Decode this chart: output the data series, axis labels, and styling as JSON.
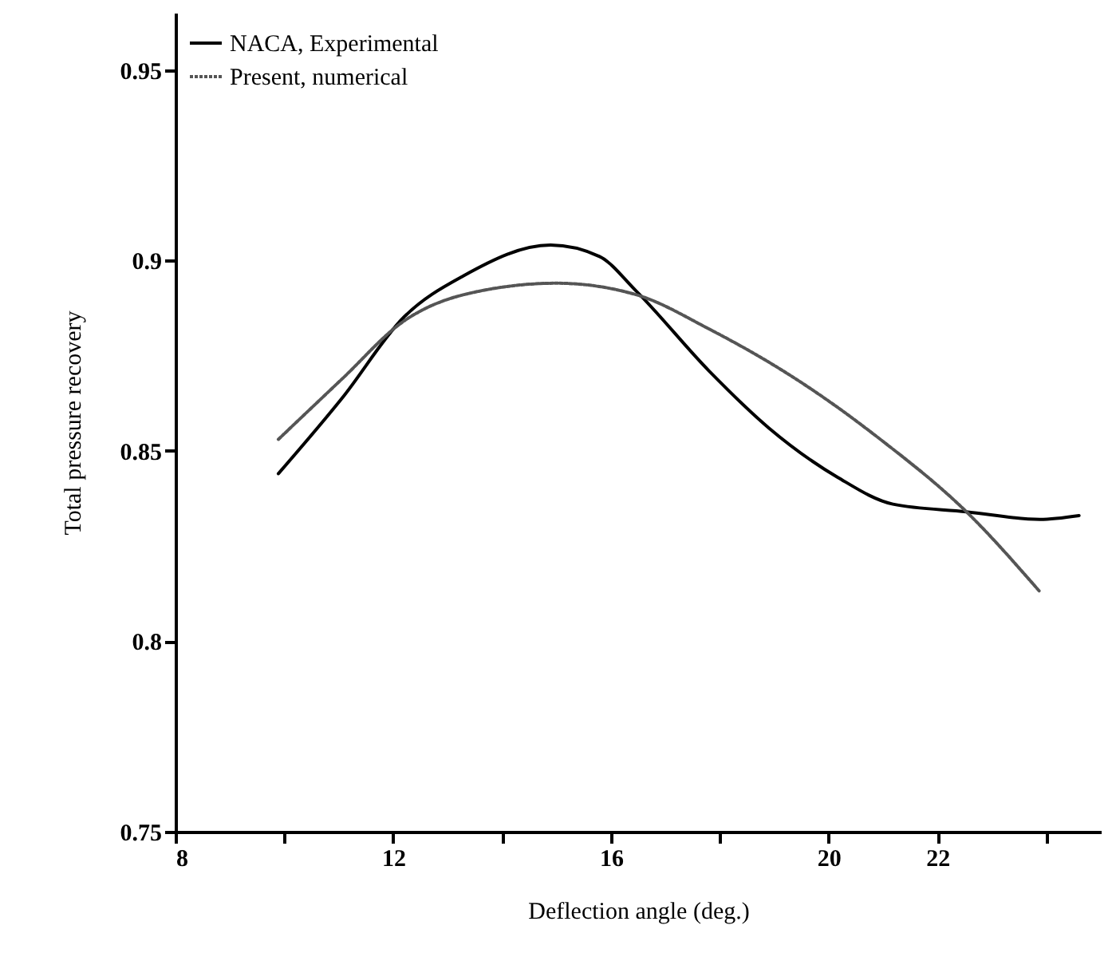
{
  "chart_data": {
    "type": "line",
    "xlabel": "Deflection angle (deg.)",
    "ylabel": "Total pressure recovery",
    "xlim": [
      8,
      25
    ],
    "xticks": [
      8,
      {
        "value": 10,
        "label": null
      },
      12,
      {
        "value": 14,
        "label": null
      },
      16,
      {
        "value": 18,
        "label": null
      },
      20,
      22,
      {
        "value": 24,
        "label": null
      }
    ],
    "ylim": [
      0.75,
      0.965
    ],
    "yticks": [
      0.75,
      0.8,
      0.85,
      0.9,
      0.95
    ],
    "grid": false,
    "legend": "top left",
    "marker": "none",
    "series": [
      {
        "name": "NACA, Experimental",
        "color": "#000000",
        "line_style": "solid",
        "x": [
          9.89,
          11.07,
          12.19,
          13.3,
          14.89,
          15.79,
          16.46,
          17.8,
          18.9,
          20.17,
          21.18,
          22.53,
          23.88,
          24.6
        ],
        "values": [
          0.844,
          0.864,
          0.885,
          0.896,
          0.904,
          0.901,
          0.892,
          0.871,
          0.856,
          0.843,
          0.836,
          0.834,
          0.832,
          0.833
        ]
      },
      {
        "name": "Present, numerical",
        "color": "#555555",
        "line_style": "dotted",
        "x": [
          9.89,
          11.07,
          12.19,
          13.3,
          15.0,
          16.46,
          17.8,
          19.49,
          20.95,
          22.53,
          23.88
        ],
        "values": [
          0.853,
          0.869,
          0.884,
          0.891,
          0.894,
          0.891,
          0.882,
          0.868,
          0.853,
          0.834,
          0.813
        ]
      }
    ]
  }
}
